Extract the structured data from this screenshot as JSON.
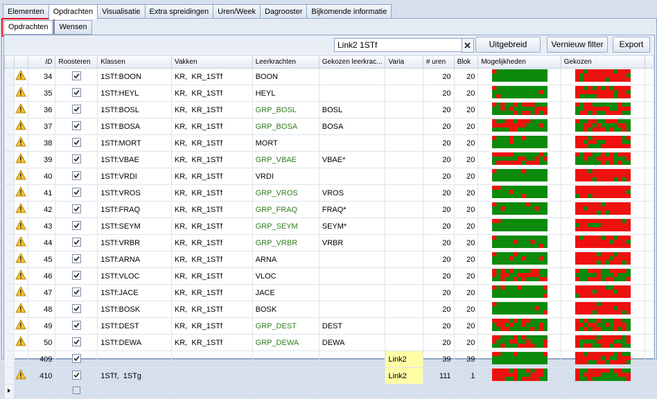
{
  "tabs": [
    "Elementen",
    "Opdrachten",
    "Visualisatie",
    "Extra spreidingen",
    "Uren/Week",
    "Dagrooster",
    "Bijkomende informatie"
  ],
  "active_tab": 1,
  "subtabs": [
    "Opdrachten",
    "Wensen"
  ],
  "active_subtab": 0,
  "toolbar": {
    "search": "Link2 1STf",
    "buttons": [
      "Uitgebreid zoeken",
      "Vernieuw filter",
      "Export"
    ]
  },
  "table": {
    "headers": [
      "ID",
      "Roosteren",
      "Klassen",
      "Vakken",
      "Leerkrachten",
      "Gekozen leerkrac...",
      "Varia",
      "# uren",
      "Blok",
      "Mogelijkheden",
      "Gekozen"
    ],
    "rows": [
      {
        "id": 34,
        "warning": true,
        "roosteren": true,
        "klassen": "1STf:BOON",
        "vakken": "KR,  KR_1STf",
        "leerkrachten": "BOON",
        "group": false,
        "uren": 20,
        "blok": 20
      },
      {
        "id": 35,
        "warning": true,
        "roosteren": true,
        "klassen": "1STf:HEYL",
        "vakken": "KR,  KR_1STf",
        "leerkrachten": "HEYL",
        "group": false,
        "uren": 20,
        "blok": 20
      },
      {
        "id": 36,
        "warning": true,
        "roosteren": true,
        "klassen": "1STf:BOSL",
        "vakken": "KR,  KR_1STf",
        "leerkrachten": "GRP_BOSL",
        "group": true,
        "gekozen": "BOSL",
        "uren": 20,
        "blok": 20
      },
      {
        "id": 37,
        "warning": true,
        "roosteren": true,
        "klassen": "1STf:BOSA",
        "vakken": "KR,  KR_1STf",
        "leerkrachten": "GRP_BOSA",
        "group": true,
        "gekozen": "BOSA",
        "uren": 20,
        "blok": 20
      },
      {
        "id": 38,
        "warning": true,
        "roosteren": true,
        "klassen": "1STf:MORT",
        "vakken": "KR,  KR_1STf",
        "leerkrachten": "MORT",
        "group": false,
        "uren": 20,
        "blok": 20
      },
      {
        "id": 39,
        "warning": true,
        "roosteren": true,
        "klassen": "1STf:VBAE",
        "vakken": "KR,  KR_1STf",
        "leerkrachten": "GRP_VBAE",
        "group": true,
        "gekozen": "VBAE*",
        "uren": 20,
        "blok": 20
      },
      {
        "id": 40,
        "warning": true,
        "roosteren": true,
        "klassen": "1STf:VRDI",
        "vakken": "KR,  KR_1STf",
        "leerkrachten": "VRDI",
        "group": false,
        "uren": 20,
        "blok": 20
      },
      {
        "id": 41,
        "warning": true,
        "roosteren": true,
        "klassen": "1STf:VROS",
        "vakken": "KR,  KR_1STf",
        "leerkrachten": "GRP_VROS",
        "group": true,
        "gekozen": "VROS",
        "uren": 20,
        "blok": 20
      },
      {
        "id": 42,
        "warning": true,
        "roosteren": true,
        "klassen": "1STf:FRAQ",
        "vakken": "KR,  KR_1STf",
        "leerkrachten": "GRP_FRAQ",
        "group": true,
        "gekozen": "FRAQ*",
        "uren": 20,
        "blok": 20
      },
      {
        "id": 43,
        "warning": true,
        "roosteren": true,
        "klassen": "1STf:SEYM",
        "vakken": "KR,  KR_1STf",
        "leerkrachten": "GRP_SEYM",
        "group": true,
        "gekozen": "SEYM*",
        "uren": 20,
        "blok": 20
      },
      {
        "id": 44,
        "warning": true,
        "roosteren": true,
        "klassen": "1STf:VRBR",
        "vakken": "KR,  KR_1STf",
        "leerkrachten": "GRP_VRBR",
        "group": true,
        "gekozen": "VRBR",
        "uren": 20,
        "blok": 20
      },
      {
        "id": 45,
        "warning": true,
        "roosteren": true,
        "klassen": "1STf:ARNA",
        "vakken": "KR,  KR_1STf",
        "leerkrachten": "ARNA",
        "group": false,
        "uren": 20,
        "blok": 20
      },
      {
        "id": 46,
        "warning": true,
        "roosteren": true,
        "klassen": "1STf:VLOC",
        "vakken": "KR,  KR_1STf",
        "leerkrachten": "VLOC",
        "group": false,
        "uren": 20,
        "blok": 20
      },
      {
        "id": 47,
        "warning": true,
        "roosteren": true,
        "klassen": "1STf:JACE",
        "vakken": "KR,  KR_1STf",
        "leerkrachten": "JACE",
        "group": false,
        "uren": 20,
        "blok": 20
      },
      {
        "id": 48,
        "warning": true,
        "roosteren": true,
        "klassen": "1STf:BOSK",
        "vakken": "KR,  KR_1STf",
        "leerkrachten": "BOSK",
        "group": false,
        "uren": 20,
        "blok": 20
      },
      {
        "id": 49,
        "warning": true,
        "roosteren": true,
        "klassen": "1STf:DEST",
        "vakken": "KR,  KR_1STf",
        "leerkrachten": "GRP_DEST",
        "group": true,
        "gekozen": "DEST",
        "uren": 20,
        "blok": 20
      },
      {
        "id": 50,
        "warning": true,
        "roosteren": true,
        "klassen": "1STf:DEWA",
        "vakken": "KR,  KR_1STf",
        "leerkrachten": "GRP_DEWA",
        "group": true,
        "gekozen": "DEWA",
        "uren": 20,
        "blok": 20
      },
      {
        "id": 409,
        "warning": false,
        "roosteren": true,
        "varia": "Link2",
        "uren": 39,
        "blok": 39
      },
      {
        "id": 410,
        "warning": true,
        "roosteren": true,
        "klassen": "1STf,  1STg",
        "varia": "Link2",
        "uren": 111,
        "blok": 1
      }
    ]
  }
}
